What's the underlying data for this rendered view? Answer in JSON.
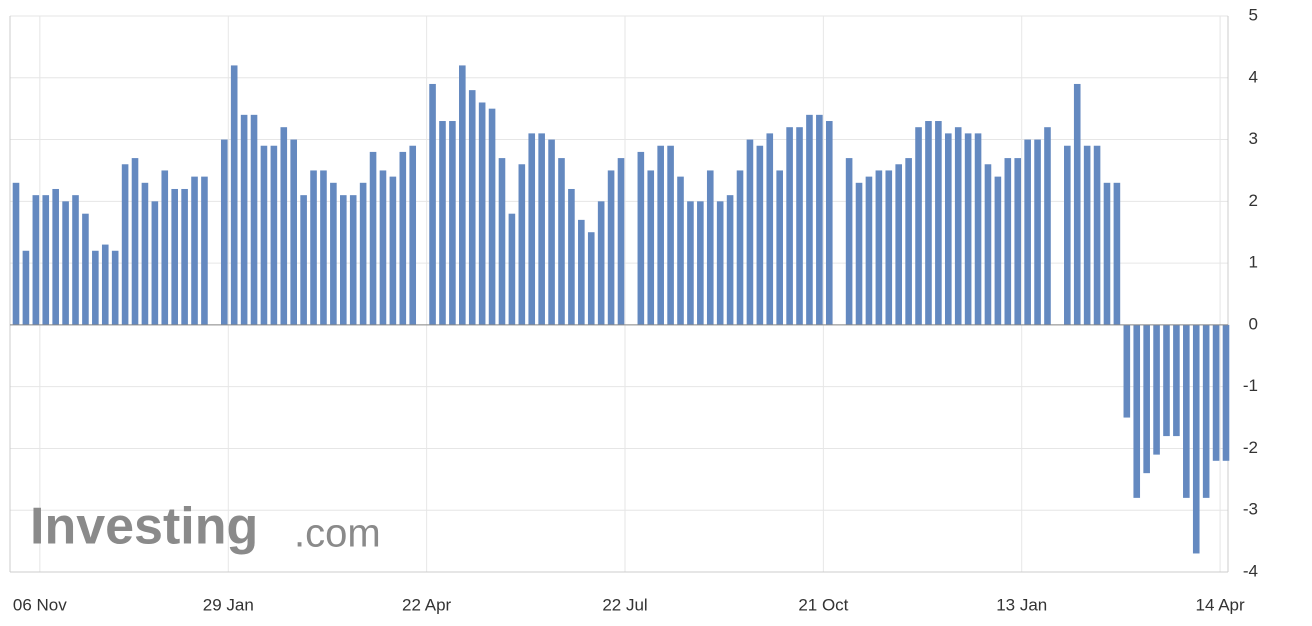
{
  "chart_data": {
    "type": "bar",
    "watermark": {
      "brand": "Investing",
      "suffix": ".com"
    },
    "categories": [
      null,
      null,
      "06 Nov",
      null,
      null,
      null,
      null,
      null,
      null,
      null,
      null,
      null,
      null,
      null,
      null,
      null,
      null,
      null,
      null,
      null,
      null,
      "29 Jan",
      null,
      null,
      null,
      null,
      null,
      null,
      null,
      null,
      null,
      null,
      null,
      null,
      null,
      null,
      null,
      null,
      null,
      null,
      null,
      "22 Apr",
      null,
      null,
      null,
      null,
      null,
      null,
      null,
      null,
      null,
      null,
      null,
      null,
      null,
      null,
      null,
      null,
      null,
      null,
      null,
      "22 Jul",
      null,
      null,
      null,
      null,
      null,
      null,
      null,
      null,
      null,
      null,
      null,
      null,
      null,
      null,
      null,
      null,
      null,
      null,
      null,
      "21 Oct",
      null,
      null,
      null,
      null,
      null,
      null,
      null,
      null,
      null,
      null,
      null,
      null,
      null,
      null,
      null,
      null,
      null,
      null,
      null,
      "13 Jan",
      null,
      null,
      null,
      null,
      null,
      null,
      null,
      null,
      null,
      null,
      null,
      null,
      null,
      null,
      null,
      null,
      null,
      null,
      null,
      "14 Apr",
      null
    ],
    "values": [
      2.3,
      1.2,
      2.1,
      2.1,
      2.2,
      2.0,
      2.1,
      1.8,
      1.2,
      1.3,
      1.2,
      2.6,
      2.7,
      2.3,
      2.0,
      2.5,
      2.2,
      2.2,
      2.4,
      2.4,
      null,
      3.0,
      4.2,
      3.4,
      3.4,
      2.9,
      2.9,
      3.2,
      3.0,
      2.1,
      2.5,
      2.5,
      2.3,
      2.1,
      2.1,
      2.3,
      2.8,
      2.5,
      2.4,
      2.8,
      2.9,
      null,
      3.9,
      3.3,
      3.3,
      4.2,
      3.8,
      3.6,
      3.5,
      2.7,
      1.8,
      2.6,
      3.1,
      3.1,
      3.0,
      2.7,
      2.2,
      1.7,
      1.5,
      2.0,
      2.5,
      2.7,
      null,
      2.8,
      2.5,
      2.9,
      2.9,
      2.4,
      2.0,
      2.0,
      2.5,
      2.0,
      2.1,
      2.5,
      3.0,
      2.9,
      3.1,
      2.5,
      3.2,
      3.2,
      3.4,
      3.4,
      3.3,
      null,
      2.7,
      2.3,
      2.4,
      2.5,
      2.5,
      2.6,
      2.7,
      3.2,
      3.3,
      3.3,
      3.1,
      3.2,
      3.1,
      3.1,
      2.6,
      2.4,
      2.7,
      2.7,
      3.0,
      3.0,
      3.2,
      null,
      2.9,
      3.9,
      2.9,
      2.9,
      2.3,
      2.3,
      -1.5,
      -2.8,
      -2.4,
      -2.1,
      -1.8,
      -1.8,
      -2.8,
      -3.7,
      -2.8,
      -2.2,
      -2.2
    ],
    "color": "#6489c0",
    "ylim": [
      -4,
      5
    ],
    "yticks": [
      -4,
      -3,
      -2,
      -1,
      0,
      1,
      2,
      3,
      4,
      5
    ],
    "grid": true
  }
}
